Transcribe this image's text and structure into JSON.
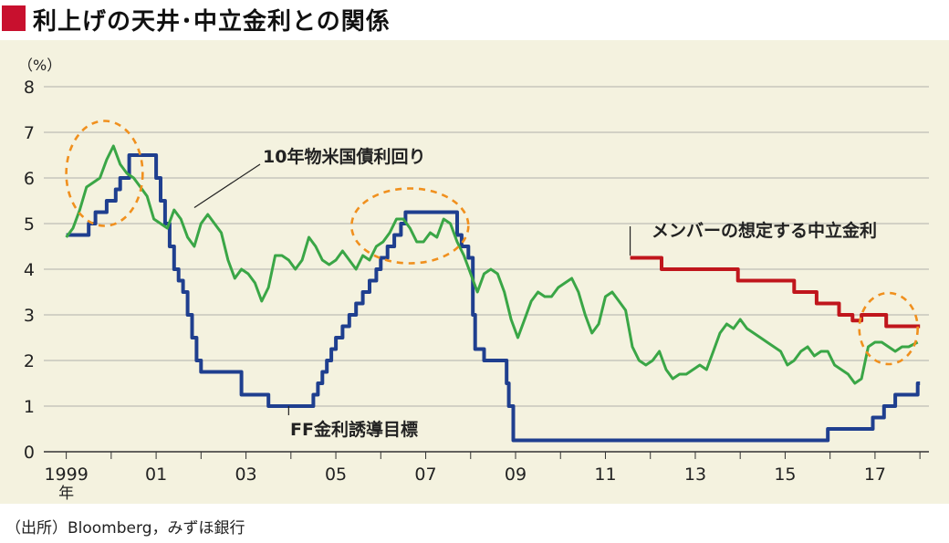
{
  "header": {
    "title": "利上げの天井･中立金利との関係"
  },
  "source": "（出所）Bloomberg，みずほ銀行",
  "colors": {
    "title_mark": "#c8102e",
    "background": "#f4f2df",
    "ff_rate": "#1f3f8f",
    "ten_year": "#3aa646",
    "neutral": "#c0161c",
    "highlight_circle": "#f0901e",
    "grid": "#9a9a9a"
  },
  "chart_data": {
    "type": "line",
    "title": "利上げの天井･中立金利との関係",
    "unit_label": "（%）",
    "ylim": [
      0,
      8
    ],
    "xlim": [
      1998.5,
      2018.2
    ],
    "yticks": [
      "0",
      "1",
      "2",
      "3",
      "4",
      "5",
      "6",
      "7",
      "8"
    ],
    "xticks": [
      {
        "x": 1999,
        "label": "1999"
      },
      {
        "x": 2001,
        "label": "01"
      },
      {
        "x": 2003,
        "label": "03"
      },
      {
        "x": 2005,
        "label": "05"
      },
      {
        "x": 2007,
        "label": "07"
      },
      {
        "x": 2009,
        "label": "09"
      },
      {
        "x": 2011,
        "label": "11"
      },
      {
        "x": 2013,
        "label": "13"
      },
      {
        "x": 2015,
        "label": "15"
      },
      {
        "x": 2017,
        "label": "17"
      }
    ],
    "x_suffix": "年",
    "grid": true,
    "series": [
      {
        "name": "FF金利誘導目標",
        "style": "step",
        "points": [
          [
            1999.0,
            4.75
          ],
          [
            1999.5,
            5.0
          ],
          [
            1999.65,
            5.25
          ],
          [
            1999.9,
            5.5
          ],
          [
            2000.1,
            5.75
          ],
          [
            2000.2,
            6.0
          ],
          [
            2000.4,
            6.5
          ],
          [
            2001.0,
            6.0
          ],
          [
            2001.1,
            5.5
          ],
          [
            2001.2,
            5.0
          ],
          [
            2001.3,
            4.5
          ],
          [
            2001.4,
            4.0
          ],
          [
            2001.5,
            3.75
          ],
          [
            2001.6,
            3.5
          ],
          [
            2001.7,
            3.0
          ],
          [
            2001.8,
            2.5
          ],
          [
            2001.9,
            2.0
          ],
          [
            2002.0,
            1.75
          ],
          [
            2002.9,
            1.25
          ],
          [
            2003.5,
            1.0
          ],
          [
            2004.5,
            1.25
          ],
          [
            2004.6,
            1.5
          ],
          [
            2004.7,
            1.75
          ],
          [
            2004.8,
            2.0
          ],
          [
            2004.9,
            2.25
          ],
          [
            2005.0,
            2.5
          ],
          [
            2005.15,
            2.75
          ],
          [
            2005.3,
            3.0
          ],
          [
            2005.45,
            3.25
          ],
          [
            2005.6,
            3.5
          ],
          [
            2005.75,
            3.75
          ],
          [
            2005.9,
            4.0
          ],
          [
            2006.0,
            4.25
          ],
          [
            2006.15,
            4.5
          ],
          [
            2006.3,
            4.75
          ],
          [
            2006.45,
            5.0
          ],
          [
            2006.55,
            5.25
          ],
          [
            2007.7,
            4.75
          ],
          [
            2007.8,
            4.5
          ],
          [
            2007.95,
            4.25
          ],
          [
            2008.05,
            3.0
          ],
          [
            2008.1,
            2.25
          ],
          [
            2008.3,
            2.0
          ],
          [
            2008.8,
            1.5
          ],
          [
            2008.85,
            1.0
          ],
          [
            2008.95,
            0.25
          ],
          [
            2015.95,
            0.5
          ],
          [
            2016.95,
            0.75
          ],
          [
            2017.2,
            1.0
          ],
          [
            2017.45,
            1.25
          ],
          [
            2017.95,
            1.5
          ]
        ]
      },
      {
        "name": "10年物米国債利回り",
        "style": "line",
        "points": [
          [
            1999.0,
            4.7
          ],
          [
            1999.15,
            4.9
          ],
          [
            1999.3,
            5.3
          ],
          [
            1999.45,
            5.8
          ],
          [
            1999.6,
            5.9
          ],
          [
            1999.75,
            6.0
          ],
          [
            1999.9,
            6.4
          ],
          [
            2000.05,
            6.7
          ],
          [
            2000.2,
            6.3
          ],
          [
            2000.35,
            6.1
          ],
          [
            2000.5,
            6.0
          ],
          [
            2000.65,
            5.8
          ],
          [
            2000.8,
            5.6
          ],
          [
            2000.95,
            5.1
          ],
          [
            2001.1,
            5.0
          ],
          [
            2001.25,
            4.9
          ],
          [
            2001.4,
            5.3
          ],
          [
            2001.55,
            5.1
          ],
          [
            2001.7,
            4.7
          ],
          [
            2001.85,
            4.5
          ],
          [
            2002.0,
            5.0
          ],
          [
            2002.15,
            5.2
          ],
          [
            2002.3,
            5.0
          ],
          [
            2002.45,
            4.8
          ],
          [
            2002.6,
            4.2
          ],
          [
            2002.75,
            3.8
          ],
          [
            2002.9,
            4.0
          ],
          [
            2003.05,
            3.9
          ],
          [
            2003.2,
            3.7
          ],
          [
            2003.35,
            3.3
          ],
          [
            2003.5,
            3.6
          ],
          [
            2003.65,
            4.3
          ],
          [
            2003.8,
            4.3
          ],
          [
            2003.95,
            4.2
          ],
          [
            2004.1,
            4.0
          ],
          [
            2004.25,
            4.2
          ],
          [
            2004.4,
            4.7
          ],
          [
            2004.55,
            4.5
          ],
          [
            2004.7,
            4.2
          ],
          [
            2004.85,
            4.1
          ],
          [
            2005.0,
            4.2
          ],
          [
            2005.15,
            4.4
          ],
          [
            2005.3,
            4.2
          ],
          [
            2005.45,
            4.0
          ],
          [
            2005.6,
            4.3
          ],
          [
            2005.75,
            4.2
          ],
          [
            2005.9,
            4.5
          ],
          [
            2006.05,
            4.6
          ],
          [
            2006.2,
            4.8
          ],
          [
            2006.35,
            5.1
          ],
          [
            2006.5,
            5.1
          ],
          [
            2006.65,
            4.9
          ],
          [
            2006.8,
            4.6
          ],
          [
            2006.95,
            4.6
          ],
          [
            2007.1,
            4.8
          ],
          [
            2007.25,
            4.7
          ],
          [
            2007.4,
            5.1
          ],
          [
            2007.55,
            5.0
          ],
          [
            2007.7,
            4.6
          ],
          [
            2007.85,
            4.3
          ],
          [
            2008.0,
            3.9
          ],
          [
            2008.15,
            3.5
          ],
          [
            2008.3,
            3.9
          ],
          [
            2008.45,
            4.0
          ],
          [
            2008.6,
            3.9
          ],
          [
            2008.75,
            3.5
          ],
          [
            2008.9,
            2.9
          ],
          [
            2009.05,
            2.5
          ],
          [
            2009.2,
            2.9
          ],
          [
            2009.35,
            3.3
          ],
          [
            2009.5,
            3.5
          ],
          [
            2009.65,
            3.4
          ],
          [
            2009.8,
            3.4
          ],
          [
            2009.95,
            3.6
          ],
          [
            2010.1,
            3.7
          ],
          [
            2010.25,
            3.8
          ],
          [
            2010.4,
            3.5
          ],
          [
            2010.55,
            3.0
          ],
          [
            2010.7,
            2.6
          ],
          [
            2010.85,
            2.8
          ],
          [
            2011.0,
            3.4
          ],
          [
            2011.15,
            3.5
          ],
          [
            2011.3,
            3.3
          ],
          [
            2011.45,
            3.1
          ],
          [
            2011.6,
            2.3
          ],
          [
            2011.75,
            2.0
          ],
          [
            2011.9,
            1.9
          ],
          [
            2012.05,
            2.0
          ],
          [
            2012.2,
            2.2
          ],
          [
            2012.35,
            1.8
          ],
          [
            2012.5,
            1.6
          ],
          [
            2012.65,
            1.7
          ],
          [
            2012.8,
            1.7
          ],
          [
            2012.95,
            1.8
          ],
          [
            2013.1,
            1.9
          ],
          [
            2013.25,
            1.8
          ],
          [
            2013.4,
            2.2
          ],
          [
            2013.55,
            2.6
          ],
          [
            2013.7,
            2.8
          ],
          [
            2013.85,
            2.7
          ],
          [
            2014.0,
            2.9
          ],
          [
            2014.15,
            2.7
          ],
          [
            2014.3,
            2.6
          ],
          [
            2014.45,
            2.5
          ],
          [
            2014.6,
            2.4
          ],
          [
            2014.75,
            2.3
          ],
          [
            2014.9,
            2.2
          ],
          [
            2015.05,
            1.9
          ],
          [
            2015.2,
            2.0
          ],
          [
            2015.35,
            2.2
          ],
          [
            2015.5,
            2.3
          ],
          [
            2015.65,
            2.1
          ],
          [
            2015.8,
            2.2
          ],
          [
            2015.95,
            2.2
          ],
          [
            2016.1,
            1.9
          ],
          [
            2016.25,
            1.8
          ],
          [
            2016.4,
            1.7
          ],
          [
            2016.55,
            1.5
          ],
          [
            2016.7,
            1.6
          ],
          [
            2016.85,
            2.3
          ],
          [
            2017.0,
            2.4
          ],
          [
            2017.15,
            2.4
          ],
          [
            2017.3,
            2.3
          ],
          [
            2017.45,
            2.2
          ],
          [
            2017.6,
            2.3
          ],
          [
            2017.75,
            2.3
          ],
          [
            2017.95,
            2.4
          ]
        ]
      },
      {
        "name": "メンバーの想定する中立金利",
        "style": "step",
        "points": [
          [
            2011.55,
            4.25
          ],
          [
            2012.25,
            4.0
          ],
          [
            2013.95,
            3.75
          ],
          [
            2015.2,
            3.5
          ],
          [
            2015.7,
            3.25
          ],
          [
            2016.2,
            3.0
          ],
          [
            2016.5,
            2.875
          ],
          [
            2016.7,
            3.0
          ],
          [
            2017.25,
            2.75
          ],
          [
            2017.95,
            2.75
          ]
        ]
      }
    ],
    "annotations": [
      {
        "text": "10年物米国債利回り",
        "series": 1
      },
      {
        "text": "FF金利誘導目標",
        "series": 0
      },
      {
        "text": "メンバーの想定する中立金利",
        "series": 2
      }
    ],
    "highlights": [
      {
        "x": 1999.85,
        "y": 6.1,
        "rx": 0.85,
        "ry": 1.15
      },
      {
        "x": 2006.65,
        "y": 4.95,
        "rx": 1.3,
        "ry": 0.82
      },
      {
        "x": 2017.3,
        "y": 2.7,
        "rx": 0.65,
        "ry": 0.78
      }
    ]
  }
}
